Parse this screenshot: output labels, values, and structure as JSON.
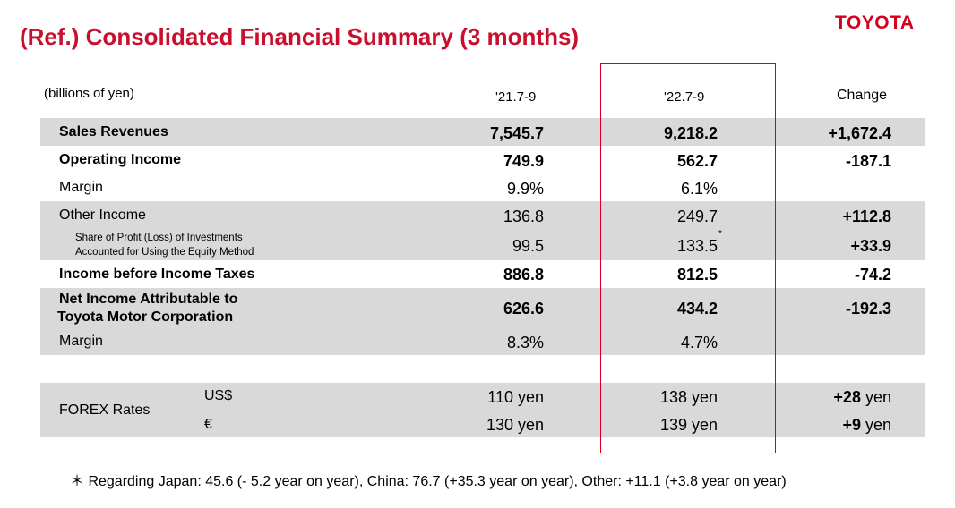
{
  "header": {
    "title": "(Ref.) Consolidated Financial Summary (3 months)",
    "logo_text": "TOYOTA"
  },
  "table": {
    "unit_label": "(billions of yen)",
    "columns": [
      "'21.7-9",
      "'22.7-9",
      "Change"
    ],
    "rows": {
      "sales": {
        "label": "Sales Revenues",
        "v1": "7,545.7",
        "v2": "9,218.2",
        "change": "+1,672.4"
      },
      "op_income": {
        "label": "Operating Income",
        "v1": "749.9",
        "v2": "562.7",
        "change": "-187.1"
      },
      "op_margin": {
        "label": "Margin",
        "v1": "9.9%",
        "v2": "6.1%"
      },
      "other_income": {
        "label": "Other Income",
        "v1": "136.8",
        "v2": "249.7",
        "change": "+112.8"
      },
      "equity": {
        "label_line1": "Share of Profit (Loss) of Investments",
        "label_line2": "Accounted for Using the Equity Method",
        "v1": "99.5",
        "v2": "133.5",
        "v2_mark": "*",
        "change": "+33.9"
      },
      "pretax": {
        "label": "Income before Income Taxes",
        "v1": "886.8",
        "v2": "812.5",
        "change": "-74.2"
      },
      "net_income": {
        "label_line1": "Net Income Attributable to",
        "label_line2": "Toyota Motor Corporation",
        "v1": "626.6",
        "v2": "434.2",
        "change": "-192.3"
      },
      "net_margin": {
        "label": "Margin",
        "v1": "8.3%",
        "v2": "4.7%"
      }
    },
    "forex": {
      "label": "FOREX Rates",
      "usd": {
        "currency": "US$",
        "v1": "110 yen",
        "v2": "138 yen",
        "change_num": "+28",
        "change_unit": " yen"
      },
      "eur": {
        "currency": "€",
        "v1": "130 yen",
        "v2": "139 yen",
        "change_num": "+9",
        "change_unit": " yen"
      }
    }
  },
  "footnote": "＊ Regarding Japan: 45.6 (- 5.2 year on year), China: 76.7 (+35.3 year on year), Other: +11.1 (+3.8 year on year)",
  "colors": {
    "title_red": "#c8102e",
    "logo_red": "#d6001c",
    "band_gray": "#d9d9d9"
  }
}
